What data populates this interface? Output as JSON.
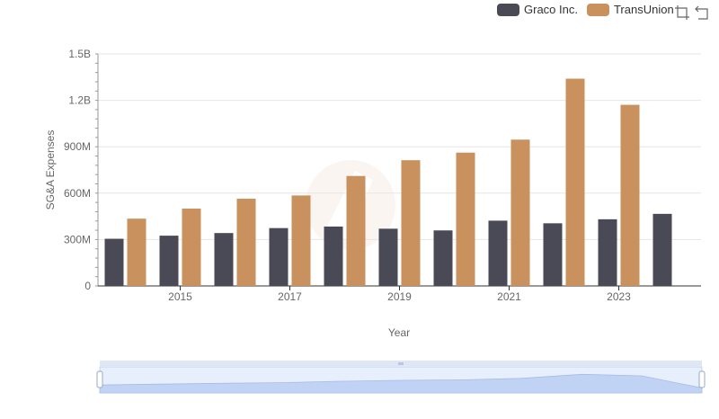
{
  "legend": {
    "items": [
      {
        "label": "Graco Inc.",
        "color": "#4a4a56"
      },
      {
        "label": "TransUnion",
        "color": "#c9915e"
      }
    ]
  },
  "toolbar": {
    "icons": [
      "zoom-select-icon",
      "zoom-reset-icon"
    ]
  },
  "chart_data": {
    "type": "bar",
    "categories": [
      "2014",
      "2015",
      "2016",
      "2017",
      "2018",
      "2019",
      "2020",
      "2021",
      "2022",
      "2023",
      "2024"
    ],
    "x_tick_labels": [
      "2015",
      "2017",
      "2019",
      "2021",
      "2023"
    ],
    "series": [
      {
        "name": "Graco Inc.",
        "color": "#4a4a56",
        "values": [
          305,
          325,
          342,
          374,
          384,
          370,
          359,
          422,
          405,
          431,
          466
        ]
      },
      {
        "name": "TransUnion",
        "color": "#c9915e",
        "values": [
          435,
          500,
          564,
          585,
          711,
          813,
          862,
          946,
          1340,
          1171,
          null
        ]
      }
    ],
    "xlabel": "Year",
    "ylabel": "SG&A Expenses",
    "ylim": [
      0,
      1500
    ],
    "y_ticks": [
      0,
      300,
      600,
      900,
      1200,
      1500
    ],
    "y_tick_labels": [
      "0",
      "300M",
      "600M",
      "900M",
      "1.2B",
      "1.5B"
    ],
    "grid": true,
    "legend_position": "top-right",
    "data_zoom": {
      "range": [
        0,
        100
      ]
    }
  }
}
